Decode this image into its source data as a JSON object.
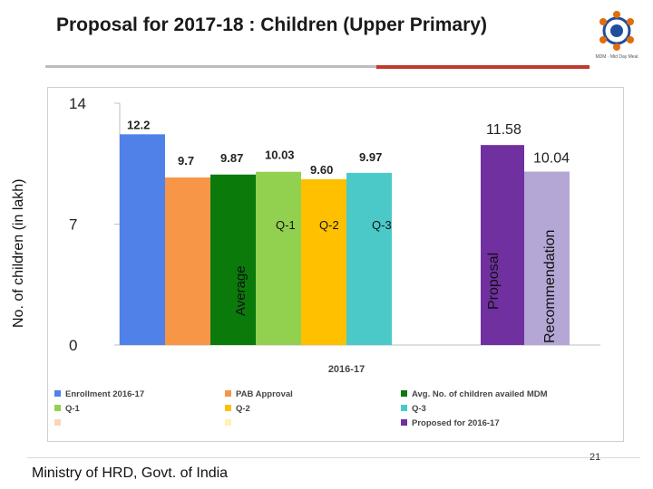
{
  "slide": {
    "title": "Proposal for 2017-18 : Children (Upper Primary)",
    "footer": "Ministry of HRD, Govt. of India",
    "page_number": "21",
    "logo_caption": "MDM · Mid Day Meal"
  },
  "colors": {
    "enrollment": "#4f81e8",
    "pab_approval": "#f79646",
    "avg_mdm": "#0a7a0a",
    "q1": "#92d050",
    "q2": "#ffc000",
    "q3": "#4bc9c9",
    "proposed": "#7030a0",
    "recommendation": "#b4a7d6",
    "legend_blank_1": "#fcd5b4",
    "legend_blank_2": "#fff2b3"
  },
  "chart_data": {
    "type": "bar",
    "ylabel": "No. of children (in lakh)",
    "xlabel": "2016-17",
    "ylim": [
      0,
      14
    ],
    "yticks": [
      0,
      7,
      14
    ],
    "series": [
      {
        "name": "Enrollment 2016-17",
        "value": 12.2,
        "label": "12.2",
        "color_key": "enrollment"
      },
      {
        "name": "PAB Approval",
        "value": 9.7,
        "label": "9.7",
        "color_key": "pab_approval"
      },
      {
        "name": "Avg. No. of children availed MDM",
        "value": 9.87,
        "label": "9.87",
        "color_key": "avg_mdm"
      },
      {
        "name": "Q-1",
        "value": 10.03,
        "label": "10.03",
        "color_key": "q1"
      },
      {
        "name": "Q-2",
        "value": 9.6,
        "label": "9.60",
        "color_key": "q2"
      },
      {
        "name": "Q-3",
        "value": 9.97,
        "label": "9.97",
        "color_key": "q3"
      },
      {
        "name": "Proposed for 2016-17",
        "value": 11.58,
        "label": "11.58",
        "color_key": "proposed"
      },
      {
        "name": "Recommendation",
        "value": 10.04,
        "label": "10.04",
        "color_key": "recommendation"
      }
    ],
    "bar_annotations": [
      "Average",
      "Q-1",
      "Q-2",
      "Q-3",
      "Proposal",
      "Recommendation"
    ],
    "legend": [
      {
        "label": "Enrollment 2016-17",
        "color_key": "enrollment"
      },
      {
        "label": "PAB Approval",
        "color_key": "pab_approval"
      },
      {
        "label": "Avg. No. of children availed MDM",
        "color_key": "avg_mdm"
      },
      {
        "label": "Q-1",
        "color_key": "q1"
      },
      {
        "label": "Q-2",
        "color_key": "q2"
      },
      {
        "label": "Q-3",
        "color_key": "q3"
      },
      {
        "label": "",
        "color_key": "legend_blank_1"
      },
      {
        "label": "",
        "color_key": "legend_blank_2"
      },
      {
        "label": "Proposed for 2016-17",
        "color_key": "proposed"
      }
    ],
    "legend_position": "bottom",
    "grid": false
  }
}
